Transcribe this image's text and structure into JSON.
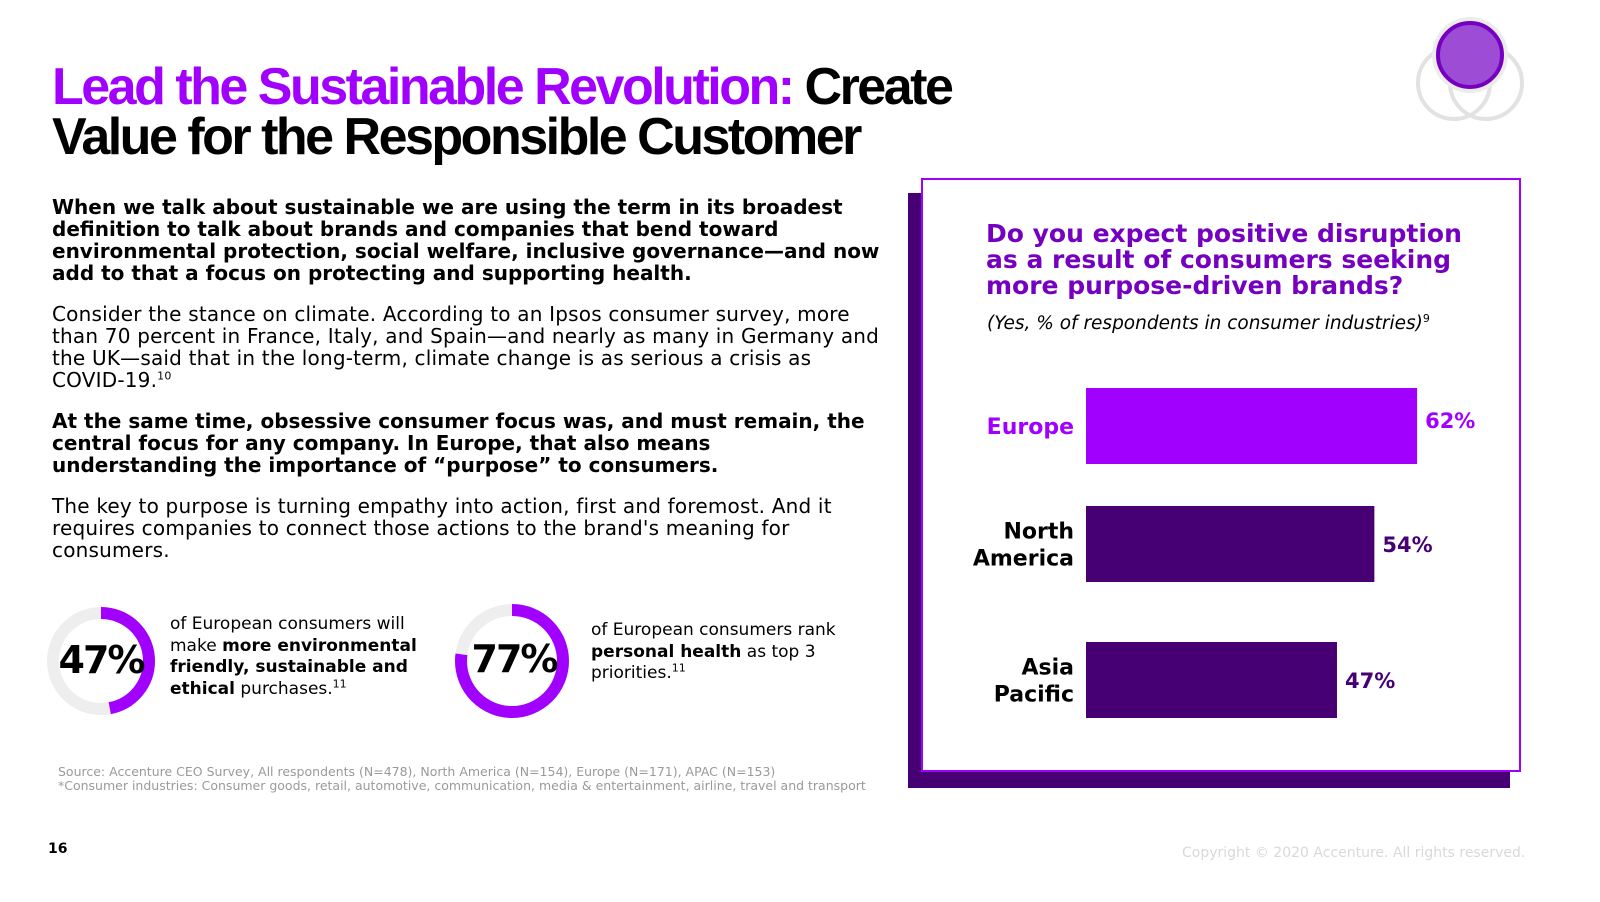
{
  "title": {
    "accent": "Lead the Sustainable Revolution:",
    "rest_line1": "Create",
    "line2": "Value for the Responsible Customer"
  },
  "body": {
    "p1": "When we talk about sustainable we are using the term in its broadest definition to talk about brands and companies that bend toward environmental protection, social welfare, inclusive governance—and now add to that a focus on protecting and supporting health.",
    "p2": "Consider the stance on climate. According to an Ipsos consumer survey, more than 70 percent in France, Italy, and Spain—and nearly as many in Germany and the UK—said that in the long-term, climate change is as serious a crisis as COVID-19.",
    "p2_ref": "10",
    "p3": "At the same time, obsessive consumer focus was, and must remain, the central focus for any company. In Europe, that also means understanding the importance of “purpose” to consumers.",
    "p4": "The key to purpose is turning empathy into action, first and foremost. And it requires companies to connect those actions to the brand's meaning for consumers."
  },
  "stats": [
    {
      "value": "47%",
      "percent": 47,
      "desc_pre": "of European consumers will make ",
      "desc_bold": "more environmental friendly, sustainable and ethical",
      "desc_post": " purchases.",
      "ref": "11"
    },
    {
      "value": "77%",
      "percent": 77,
      "desc_pre": "of European consumers rank ",
      "desc_bold": "personal health",
      "desc_post": " as top 3 priorities.",
      "ref": "11"
    }
  ],
  "source": {
    "line1": "Source: Accenture CEO Survey, All respondents (N=478), North America (N=154), Europe (N=171), APAC (N=153)",
    "line2": "*Consumer industries: Consumer goods, retail, automotive, communication, media & entertainment, airline, travel and transport"
  },
  "page_number": "16",
  "copyright": "Copyright © 2020 Accenture. All rights reserved.",
  "colors": {
    "accent": "#a100ff",
    "dark_purple": "#460073",
    "title_purple": "#7500c0",
    "ring_track": "#eeeeee"
  },
  "chart_data": {
    "type": "bar",
    "orientation": "horizontal",
    "title": "Do you expect positive disruption as a result of consumers seeking more purpose-driven brands?",
    "subtitle": "(Yes, % of respondents in consumer industries)",
    "subtitle_ref": "9",
    "categories": [
      "Europe",
      "North America",
      "Asia Pacific"
    ],
    "category_lines": [
      [
        "Europe"
      ],
      [
        "North",
        "America"
      ],
      [
        "Asia",
        "Pacific"
      ]
    ],
    "values": [
      62,
      54,
      47
    ],
    "labels": [
      "62%",
      "54%",
      "47%"
    ],
    "bar_colors": [
      "#a100ff",
      "#460073",
      "#460073"
    ],
    "label_colors": [
      "#a100ff",
      "#460073",
      "#460073"
    ],
    "category_colors": [
      "#a100ff",
      "#000000",
      "#000000"
    ],
    "xlim": [
      0,
      100
    ],
    "unit": "%"
  }
}
